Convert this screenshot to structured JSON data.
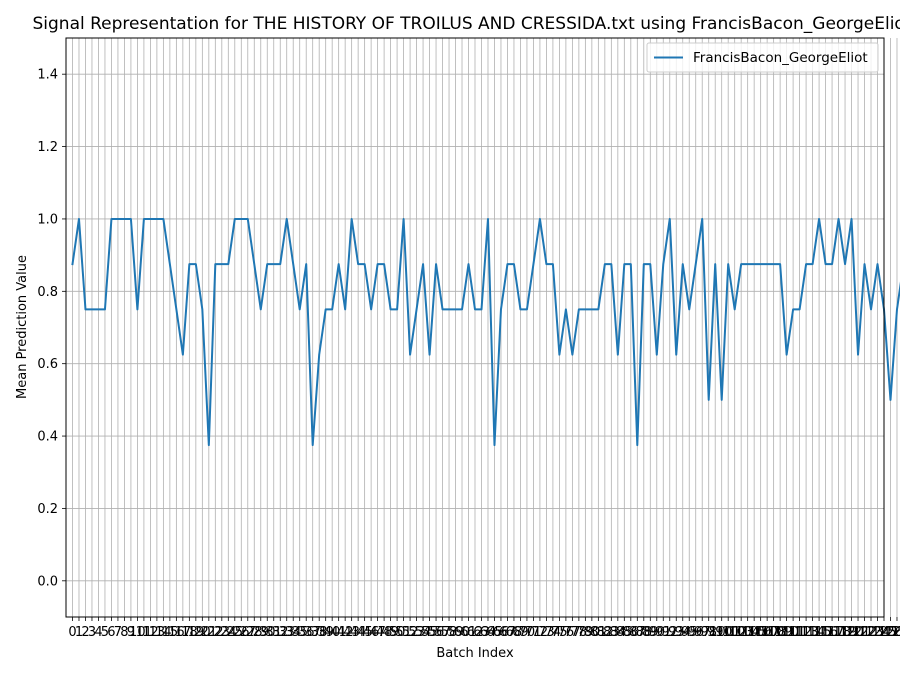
{
  "chart_data": {
    "type": "line",
    "title": "Signal Representation for THE HISTORY OF TROILUS AND CRESSIDA.txt using FrancisBacon_GeorgeEliot",
    "xlabel": "Batch Index",
    "ylabel": "Mean Prediction Value",
    "ylim": [
      -0.1,
      1.5
    ],
    "yticks": [
      0.0,
      0.2,
      0.4,
      0.6,
      0.8,
      1.0,
      1.2,
      1.4
    ],
    "xlim": [
      -1.0,
      125.0
    ],
    "grid": true,
    "legend_position": "top-right",
    "series": [
      {
        "name": "FrancisBacon_GeorgeEliot",
        "color": "#1f77b4",
        "y": [
          0.875,
          1.0,
          0.75,
          0.75,
          0.75,
          0.75,
          1.0,
          1.0,
          1.0,
          1.0,
          0.75,
          1.0,
          1.0,
          1.0,
          1.0,
          0.875,
          0.75,
          0.625,
          0.875,
          0.875,
          0.75,
          0.375,
          0.875,
          0.875,
          0.875,
          1.0,
          1.0,
          1.0,
          0.875,
          0.75,
          0.875,
          0.875,
          0.875,
          1.0,
          0.875,
          0.75,
          0.875,
          0.375,
          0.625,
          0.75,
          0.75,
          0.875,
          0.75,
          1.0,
          0.875,
          0.875,
          0.75,
          0.875,
          0.875,
          0.75,
          0.75,
          1.0,
          0.625,
          0.75,
          0.875,
          0.625,
          0.875,
          0.75,
          0.75,
          0.75,
          0.75,
          0.875,
          0.75,
          0.75,
          1.0,
          0.375,
          0.75,
          0.875,
          0.875,
          0.75,
          0.75,
          0.875,
          1.0,
          0.875,
          0.875,
          0.625,
          0.75,
          0.625,
          0.75,
          0.75,
          0.75,
          0.75,
          0.875,
          0.875,
          0.625,
          0.875,
          0.875,
          0.375,
          0.875,
          0.875,
          0.625,
          0.875,
          1.0,
          0.625,
          0.875,
          0.75,
          0.875,
          1.0,
          0.5,
          0.875,
          0.5,
          0.875,
          0.75,
          0.875,
          0.875,
          0.875,
          0.875,
          0.875,
          0.875,
          0.875,
          0.625,
          0.75,
          0.75,
          0.875,
          0.875,
          1.0,
          0.875,
          0.875,
          1.0,
          0.875,
          1.0,
          0.625,
          0.875,
          0.75,
          0.875,
          0.75,
          0.5,
          0.75,
          0.875,
          0.75,
          0.875,
          0.875,
          0.75,
          0.625,
          0.875,
          0.625,
          0.875,
          0.875,
          0.625,
          0.875,
          0.875,
          1.0,
          0.75,
          0.875,
          0.875,
          0.625,
          0.875,
          0.875,
          0.875,
          0.875,
          0.75,
          0.625,
          0.875,
          0.625,
          0.875,
          0.875,
          0.75,
          0.875,
          0.875,
          1.0,
          1.0
        ]
      }
    ]
  }
}
